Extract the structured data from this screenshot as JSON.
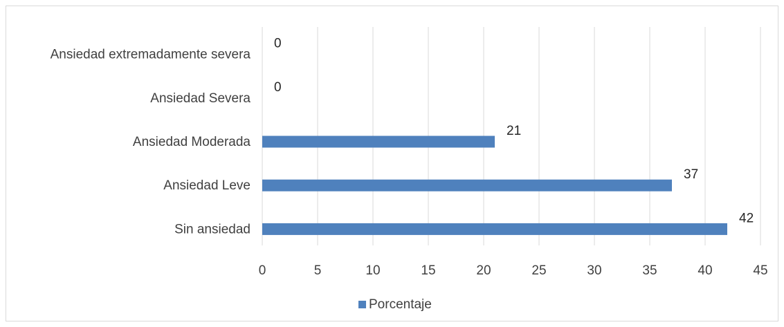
{
  "chart_data": {
    "type": "bar",
    "orientation": "horizontal",
    "categories": [
      "Ansiedad extremadamente severa",
      "Ansiedad Severa",
      "Ansiedad Moderada",
      "Ansiedad Leve",
      "Sin ansiedad"
    ],
    "series": [
      {
        "name": "Porcentaje",
        "values": [
          0,
          0,
          21,
          37,
          42
        ],
        "color": "#4f81bd"
      }
    ],
    "xlim": [
      0,
      45
    ],
    "xticks": [
      0,
      5,
      10,
      15,
      20,
      25,
      30,
      35,
      40,
      45
    ],
    "grid": "vertical",
    "legend_position": "bottom",
    "data_labels": true
  }
}
